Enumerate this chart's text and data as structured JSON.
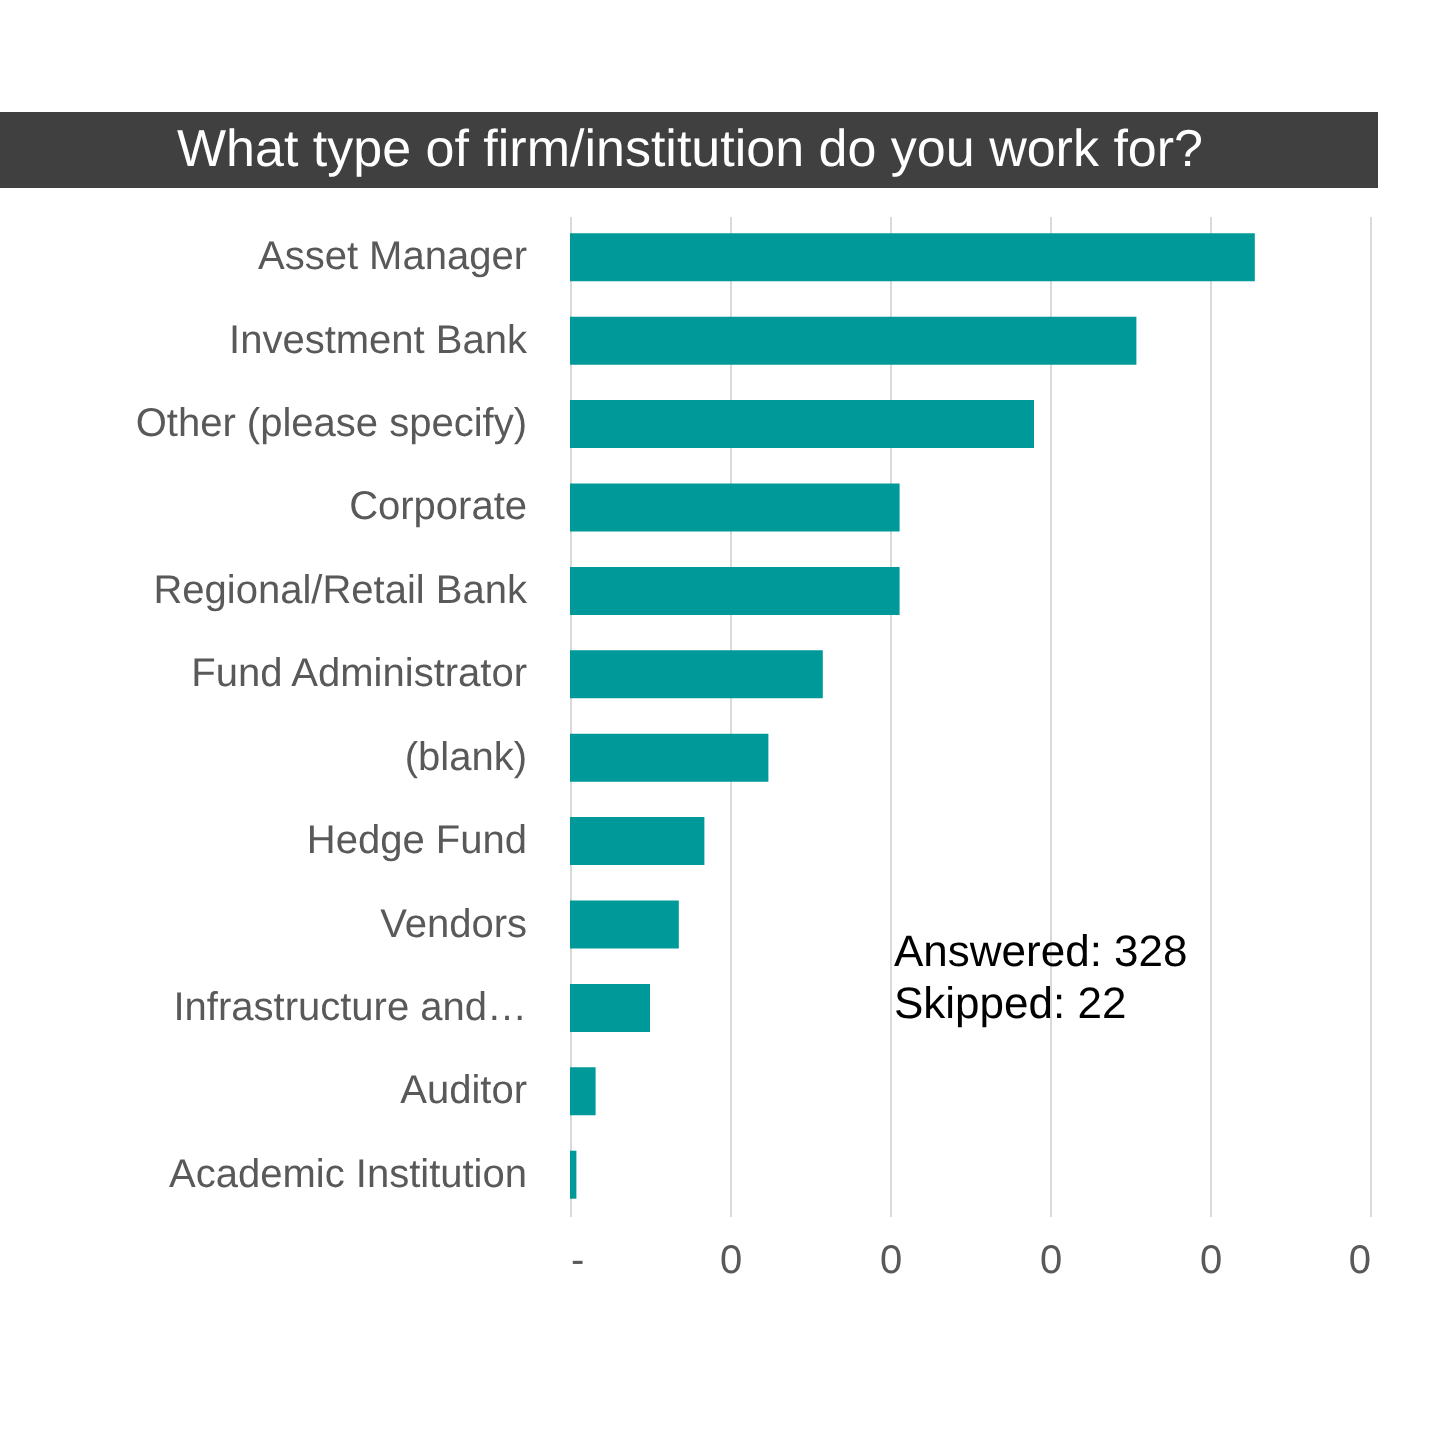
{
  "chart_data": {
    "type": "bar",
    "orientation": "horizontal",
    "title": "What type of firm/institution do you work for?",
    "categories": [
      "Asset Manager",
      "Investment Bank",
      "Other (please specify)",
      "Corporate",
      "Regional/Retail Bank",
      "Fund Administrator",
      "(blank)",
      "Hedge Fund",
      "Vendors",
      "Infrastructure and…",
      "Auditor",
      "Academic Institution"
    ],
    "values": [
      0.214,
      0.177,
      0.145,
      0.103,
      0.103,
      0.079,
      0.062,
      0.042,
      0.034,
      0.025,
      0.008,
      0.002
    ],
    "color": "#009999",
    "xticks": [
      {
        "value": 0,
        "label": "-"
      },
      {
        "value": 0.05,
        "label": "0"
      },
      {
        "value": 0.1,
        "label": "0"
      },
      {
        "value": 0.15,
        "label": "0"
      },
      {
        "value": 0.2,
        "label": "0"
      },
      {
        "value": 0.25,
        "label": "0"
      }
    ],
    "xlim": [
      0,
      0.25
    ],
    "grid": "x",
    "annotations": [
      "Answered: 328",
      "Skipped: 22"
    ]
  }
}
